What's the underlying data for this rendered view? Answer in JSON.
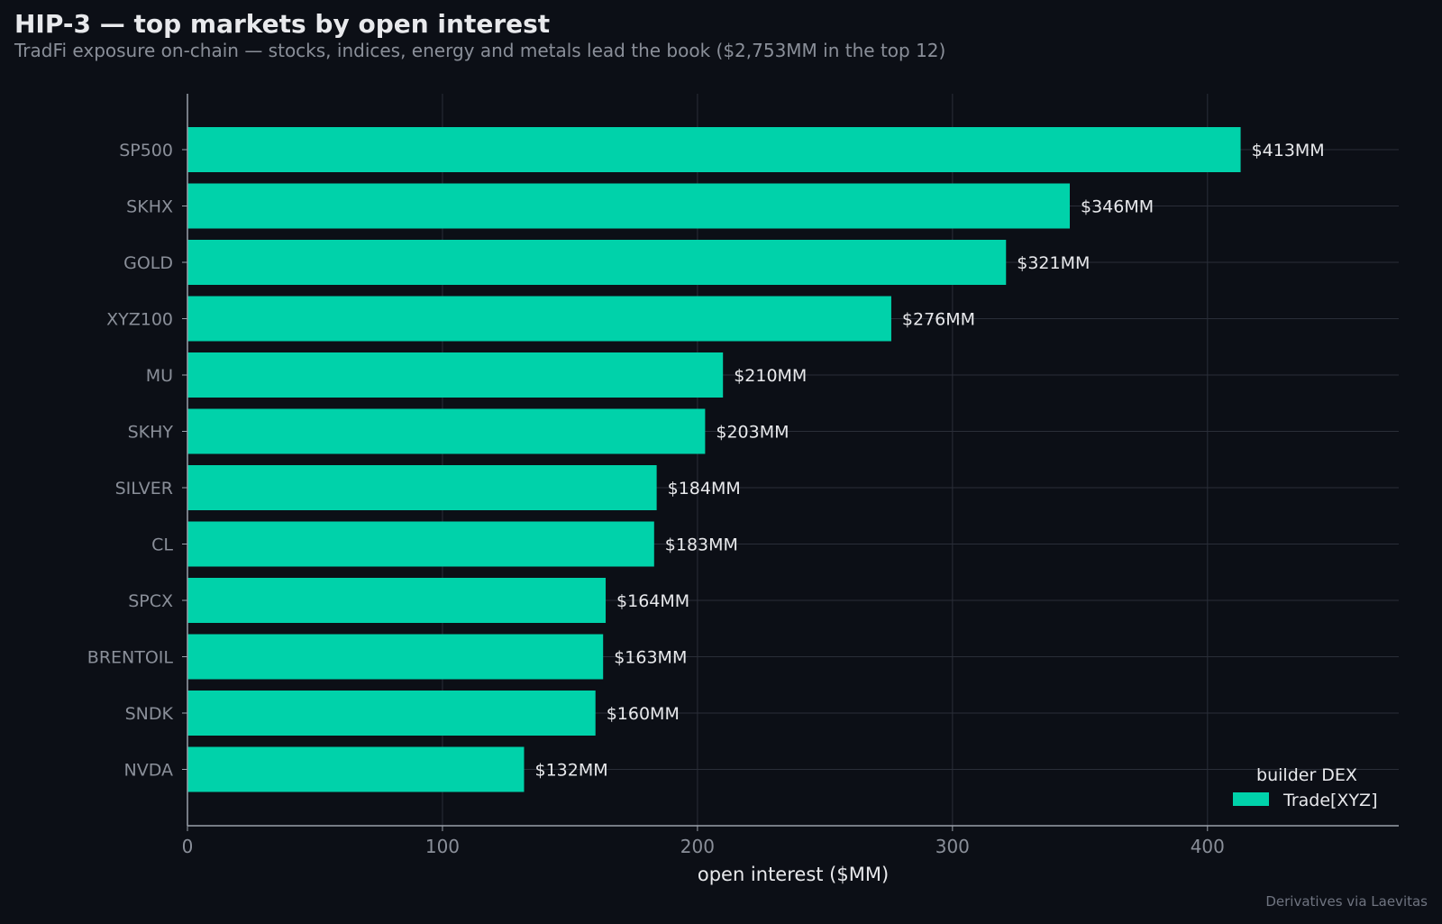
{
  "title": "HIP-3 — top markets by open interest",
  "subtitle": "TradFi exposure on-chain — stocks, indices, energy and metals lead the book ($2,753MM in the top 12)",
  "source": "Derivatives via Laevitas",
  "colors": {
    "background": "#0c0f16",
    "bar": "#00d2aa",
    "grid": "#2a2e38",
    "axis": "#9aa0aa",
    "tick_label": "#8a8f99",
    "data_label": "#e8e9ec"
  },
  "chart_data": {
    "type": "bar",
    "orientation": "horizontal",
    "categories": [
      "SP500",
      "SKHX",
      "GOLD",
      "XYZ100",
      "MU",
      "SKHY",
      "SILVER",
      "CL",
      "SPCX",
      "BRENTOIL",
      "SNDK",
      "NVDA"
    ],
    "series": [
      {
        "name": "Trade[XYZ]",
        "values": [
          413,
          346,
          321,
          276,
          210,
          203,
          184,
          183,
          164,
          163,
          160,
          132
        ],
        "labels": [
          "$413MM",
          "$346MM",
          "$321MM",
          "$276MM",
          "$210MM",
          "$203MM",
          "$184MM",
          "$183MM",
          "$164MM",
          "$163MM",
          "$160MM",
          "$132MM"
        ]
      }
    ],
    "xlabel": "open interest ($MM)",
    "ylabel": "",
    "xlim": [
      0,
      475
    ],
    "xticks": [
      0,
      100,
      200,
      300,
      400
    ],
    "grid": true,
    "legend": {
      "title": "builder DEX",
      "placement": "bottom-right"
    }
  }
}
